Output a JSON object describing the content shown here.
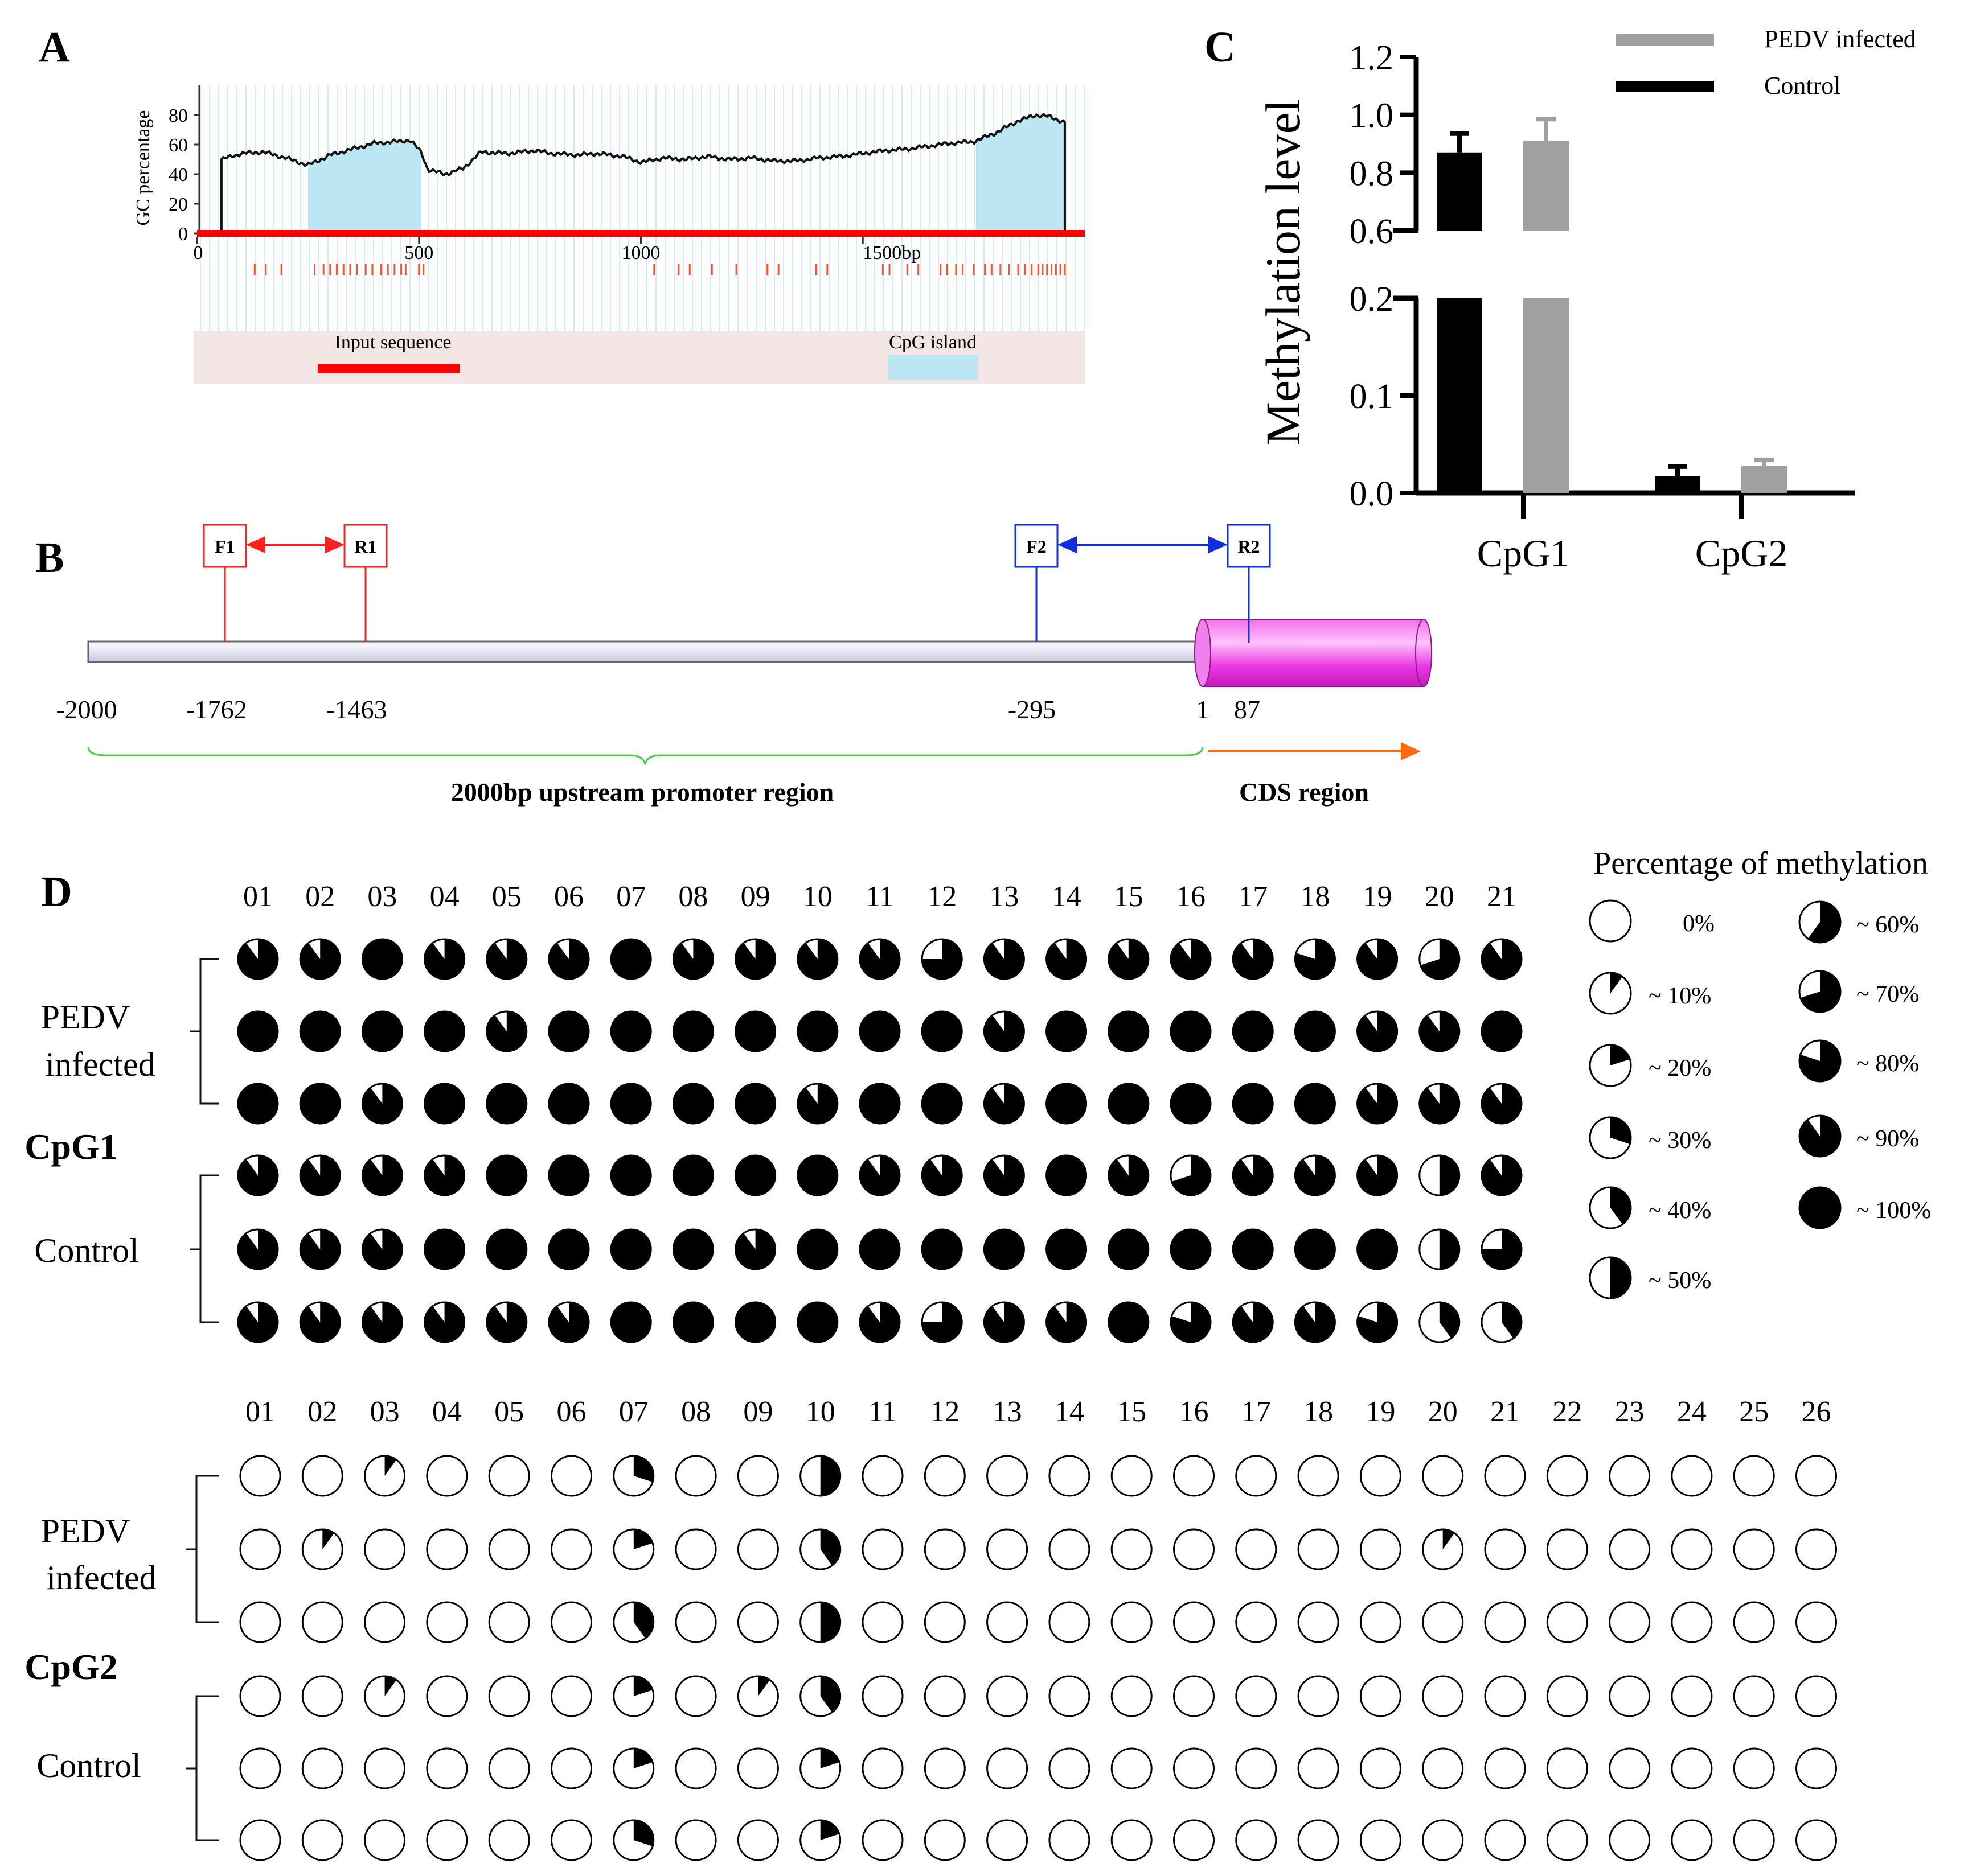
{
  "colors": {
    "black": "#000000",
    "gray": "#a0a0a0",
    "cpg_island": "#bde6f3",
    "grid": "#cfeff5",
    "input_seq": "#ff0000",
    "legend_band": "#f4e6e4",
    "magenta": "#ee3ee6",
    "green": "#44cc44",
    "orange": "#ff6a10",
    "red_arrow": "#ff2020",
    "blue_arrow": "#1030e0"
  },
  "panels": {
    "a": "A",
    "b": "B",
    "c": "C",
    "d": "D"
  },
  "panel_a": {
    "ylabel": "GC percentage",
    "yticks": [
      "0",
      "20",
      "40",
      "60",
      "80"
    ],
    "xticks": [
      "0",
      "500",
      "1000",
      "1500bp"
    ],
    "xtick_values": [
      0,
      500,
      1000,
      1500
    ],
    "x_range": [
      0,
      2000
    ],
    "y_range": [
      0,
      100
    ],
    "sequence_start": 55,
    "sequence_end": 1955,
    "cpg_islands": [
      [
        250,
        505
      ],
      [
        1755,
        1955
      ]
    ],
    "gc_profile": [
      [
        55,
        50
      ],
      [
        100,
        54
      ],
      [
        150,
        55
      ],
      [
        200,
        51
      ],
      [
        250,
        46
      ],
      [
        300,
        53
      ],
      [
        350,
        57
      ],
      [
        400,
        61
      ],
      [
        450,
        62
      ],
      [
        480,
        63
      ],
      [
        505,
        55
      ],
      [
        520,
        43
      ],
      [
        560,
        40
      ],
      [
        600,
        44
      ],
      [
        640,
        55
      ],
      [
        700,
        54
      ],
      [
        760,
        56
      ],
      [
        800,
        54
      ],
      [
        860,
        53
      ],
      [
        900,
        54
      ],
      [
        960,
        52
      ],
      [
        1000,
        48
      ],
      [
        1050,
        51
      ],
      [
        1100,
        50
      ],
      [
        1150,
        52
      ],
      [
        1200,
        50
      ],
      [
        1250,
        51
      ],
      [
        1300,
        49
      ],
      [
        1350,
        49
      ],
      [
        1400,
        51
      ],
      [
        1450,
        52
      ],
      [
        1500,
        54
      ],
      [
        1550,
        56
      ],
      [
        1600,
        57
      ],
      [
        1650,
        59
      ],
      [
        1700,
        61
      ],
      [
        1750,
        62
      ],
      [
        1800,
        68
      ],
      [
        1850,
        76
      ],
      [
        1890,
        80
      ],
      [
        1920,
        79
      ],
      [
        1955,
        75
      ]
    ],
    "cpg_sites": [
      130,
      155,
      190,
      265,
      285,
      300,
      315,
      330,
      345,
      360,
      380,
      395,
      415,
      430,
      445,
      460,
      470,
      500,
      510,
      1030,
      1085,
      1110,
      1160,
      1215,
      1285,
      1310,
      1395,
      1420,
      1545,
      1560,
      1600,
      1625,
      1675,
      1690,
      1710,
      1725,
      1750,
      1775,
      1790,
      1810,
      1830,
      1850,
      1865,
      1880,
      1895,
      1905,
      1915,
      1925,
      1935,
      1945,
      1955
    ],
    "legend_input": "Input sequence",
    "legend_cpg": "CpG island"
  },
  "panel_b": {
    "positions": [
      "-2000",
      "-1762",
      "-1463",
      "-295",
      "1",
      "87"
    ],
    "primers": [
      "F1",
      "R1",
      "F2",
      "R2"
    ],
    "promoter_label": "2000bp upstream promoter region",
    "cds_label": "CDS region"
  },
  "chart_data": {
    "type": "bar",
    "title": "",
    "categories": [
      "CpG1",
      "CpG2"
    ],
    "series": [
      {
        "name": "Control",
        "values": [
          0.87,
          0.017
        ],
        "errors": [
          0.065,
          0.01
        ]
      },
      {
        "name": "PEDV infected",
        "values": [
          0.91,
          0.028
        ],
        "errors": [
          0.075,
          0.006
        ]
      }
    ],
    "ylabel": "Methylation level",
    "xlabel": "",
    "y_lower_range": [
      0,
      0.2
    ],
    "y_upper_range": [
      0.6,
      1.2
    ],
    "yticks_lower": [
      "0.0",
      "0.1",
      "0.2"
    ],
    "yticks_upper": [
      "0.6",
      "0.8",
      "1.0",
      "1.2"
    ],
    "axis_break": true,
    "legend_position": "top-right",
    "legend": [
      "PEDV infected",
      "Control"
    ]
  },
  "panel_d": {
    "legend_title": "Percentage of methylation",
    "legend_items": [
      "0%",
      "~ 10%",
      "~ 20%",
      "~ 30%",
      "~ 40%",
      "~ 50%",
      "~ 60%",
      "~ 70%",
      "~ 80%",
      "~ 90%",
      "~ 100%"
    ],
    "legend_values": [
      0,
      10,
      20,
      30,
      40,
      50,
      60,
      70,
      80,
      90,
      100
    ],
    "group_pedv": [
      "PEDV",
      "infected"
    ],
    "group_control": "Control",
    "cpg1_label": "CpG1",
    "cpg2_label": "CpG2",
    "cpg1_sites": [
      "01",
      "02",
      "03",
      "04",
      "05",
      "06",
      "07",
      "08",
      "09",
      "10",
      "11",
      "12",
      "13",
      "14",
      "15",
      "16",
      "17",
      "18",
      "19",
      "20",
      "21"
    ],
    "cpg2_sites": [
      "01",
      "02",
      "03",
      "04",
      "05",
      "06",
      "07",
      "08",
      "09",
      "10",
      "11",
      "12",
      "13",
      "14",
      "15",
      "16",
      "17",
      "18",
      "19",
      "20",
      "21",
      "22",
      "23",
      "24",
      "25",
      "26"
    ],
    "cpg1_matrix": [
      [
        90,
        90,
        100,
        90,
        90,
        90,
        100,
        90,
        90,
        90,
        90,
        75,
        90,
        90,
        90,
        90,
        90,
        80,
        90,
        70,
        90
      ],
      [
        100,
        100,
        100,
        100,
        90,
        100,
        100,
        100,
        100,
        100,
        100,
        100,
        90,
        100,
        100,
        100,
        100,
        100,
        90,
        90,
        100
      ],
      [
        100,
        100,
        90,
        100,
        100,
        100,
        100,
        100,
        100,
        90,
        100,
        100,
        90,
        100,
        100,
        100,
        100,
        100,
        90,
        90,
        90
      ],
      [
        90,
        90,
        90,
        90,
        100,
        100,
        100,
        100,
        100,
        100,
        90,
        90,
        90,
        100,
        90,
        70,
        90,
        90,
        90,
        50,
        90
      ],
      [
        90,
        90,
        90,
        100,
        100,
        100,
        100,
        100,
        90,
        100,
        100,
        100,
        100,
        100,
        100,
        100,
        100,
        100,
        100,
        50,
        75
      ],
      [
        90,
        90,
        90,
        90,
        90,
        90,
        100,
        100,
        100,
        100,
        90,
        75,
        90,
        90,
        100,
        80,
        90,
        90,
        80,
        40,
        40
      ]
    ],
    "cpg2_matrix": [
      [
        0,
        0,
        10,
        0,
        0,
        0,
        30,
        0,
        0,
        50,
        0,
        0,
        0,
        0,
        0,
        0,
        0,
        0,
        0,
        0,
        0,
        0,
        0,
        0,
        0,
        0
      ],
      [
        0,
        10,
        0,
        0,
        0,
        0,
        20,
        0,
        0,
        40,
        0,
        0,
        0,
        0,
        0,
        0,
        0,
        0,
        0,
        10,
        0,
        0,
        0,
        0,
        0,
        0
      ],
      [
        0,
        0,
        0,
        0,
        0,
        0,
        40,
        0,
        0,
        50,
        0,
        0,
        0,
        0,
        0,
        0,
        0,
        0,
        0,
        0,
        0,
        0,
        0,
        0,
        0,
        0
      ],
      [
        0,
        0,
        10,
        0,
        0,
        0,
        20,
        0,
        10,
        40,
        0,
        0,
        0,
        0,
        0,
        0,
        0,
        0,
        0,
        0,
        0,
        0,
        0,
        0,
        0,
        0
      ],
      [
        0,
        0,
        0,
        0,
        0,
        0,
        20,
        0,
        0,
        20,
        0,
        0,
        0,
        0,
        0,
        0,
        0,
        0,
        0,
        0,
        0,
        0,
        0,
        0,
        0,
        0
      ],
      [
        0,
        0,
        0,
        0,
        0,
        0,
        30,
        0,
        0,
        20,
        0,
        0,
        0,
        0,
        0,
        0,
        0,
        0,
        0,
        0,
        0,
        0,
        0,
        0,
        0,
        0
      ]
    ]
  }
}
